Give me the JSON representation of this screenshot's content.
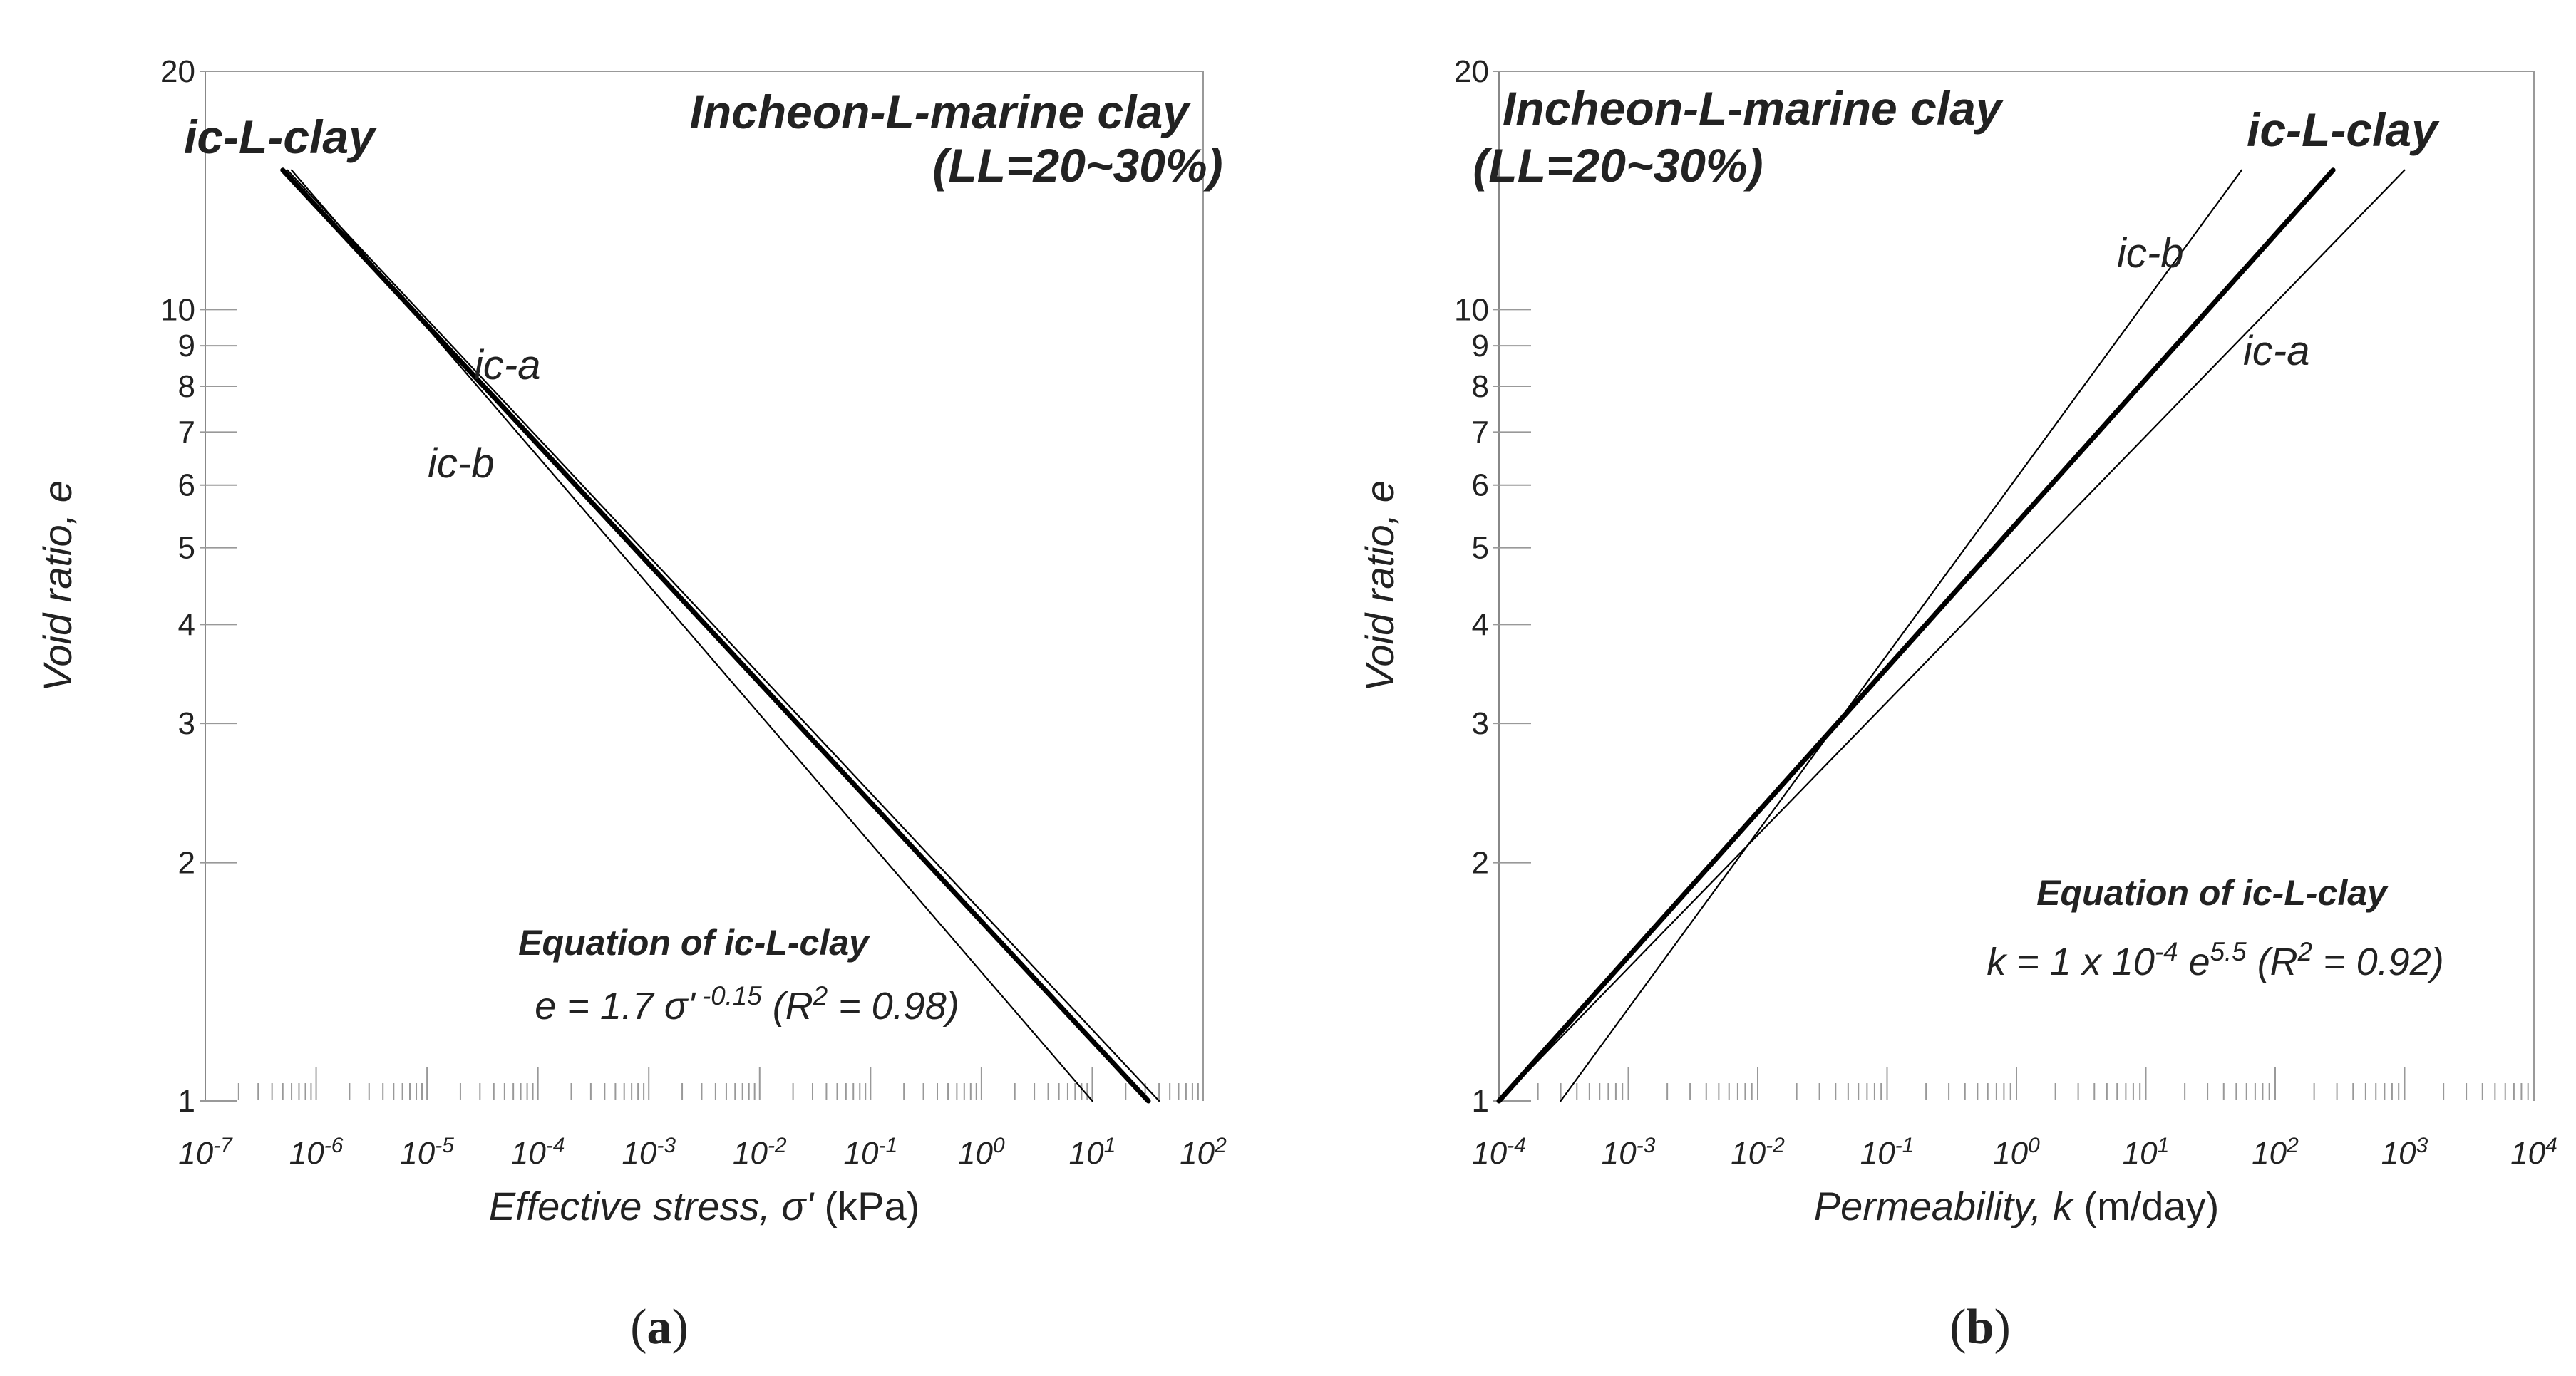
{
  "chart_data": [
    {
      "type": "line",
      "panel_label": "a",
      "title": "Incheon-L-marine clay",
      "subtitle": "(LL=20~30%)",
      "xlabel": "Effective stress, σ' (kPa)",
      "xlabel_italic": "Effective stress, σ'",
      "xlabel_unit": "(kPa)",
      "ylabel": "Void ratio, e",
      "xscale": "log",
      "yscale": "log",
      "xlim": [
        1e-07,
        100
      ],
      "ylim": [
        1,
        20
      ],
      "x_tick_labels": [
        "10-7",
        "10-6",
        "10-5",
        "10-4",
        "10-3",
        "10-2",
        "10-1",
        "100",
        "101",
        "102"
      ],
      "y_tick_labels": [
        "1",
        "2",
        "3",
        "4",
        "5",
        "6",
        "7",
        "8",
        "9",
        "10",
        "20"
      ],
      "series": [
        {
          "name": "ic-L-clay",
          "weight": "bold",
          "x": [
            5e-07,
            32
          ],
          "y": [
            15,
            1
          ]
        },
        {
          "name": "ic-a",
          "weight": "thin",
          "x": [
            5.5e-07,
            40
          ],
          "y": [
            15,
            1
          ]
        },
        {
          "name": "ic-b",
          "weight": "thin",
          "x": [
            6e-07,
            10
          ],
          "y": [
            15,
            1
          ]
        }
      ],
      "annotation": {
        "title": "Equation of ic-L-clay",
        "equation": "e = 1.7 σ' -0.15 (R2 = 0.98)"
      }
    },
    {
      "type": "line",
      "panel_label": "b",
      "title": "Incheon-L-marine clay",
      "subtitle": "(LL=20~30%)",
      "xlabel": "Permeability, k (m/day)",
      "xlabel_italic": "Permeability, k",
      "xlabel_unit": "(m/day)",
      "ylabel": "Void ratio, e",
      "xscale": "log",
      "yscale": "log",
      "xlim": [
        0.0001,
        10000
      ],
      "ylim": [
        1,
        20
      ],
      "x_tick_labels": [
        "10-4",
        "10-3",
        "10-2",
        "10-1",
        "100",
        "101",
        "102",
        "103",
        "104"
      ],
      "y_tick_labels": [
        "1",
        "2",
        "3",
        "4",
        "5",
        "6",
        "7",
        "8",
        "9",
        "10",
        "20"
      ],
      "series": [
        {
          "name": "ic-L-clay",
          "weight": "bold",
          "x": [
            0.0001,
            280
          ],
          "y": [
            1,
            15
          ]
        },
        {
          "name": "ic-a",
          "weight": "thin",
          "x": [
            0.0001,
            1000
          ],
          "y": [
            1,
            15
          ]
        },
        {
          "name": "ic-b",
          "weight": "thin",
          "x": [
            0.0003,
            55
          ],
          "y": [
            1,
            15
          ]
        }
      ],
      "annotation": {
        "title": "Equation of ic-L-clay",
        "equation": "k = 1 x 10-4 e5.5 (R2 = 0.92)"
      }
    }
  ]
}
